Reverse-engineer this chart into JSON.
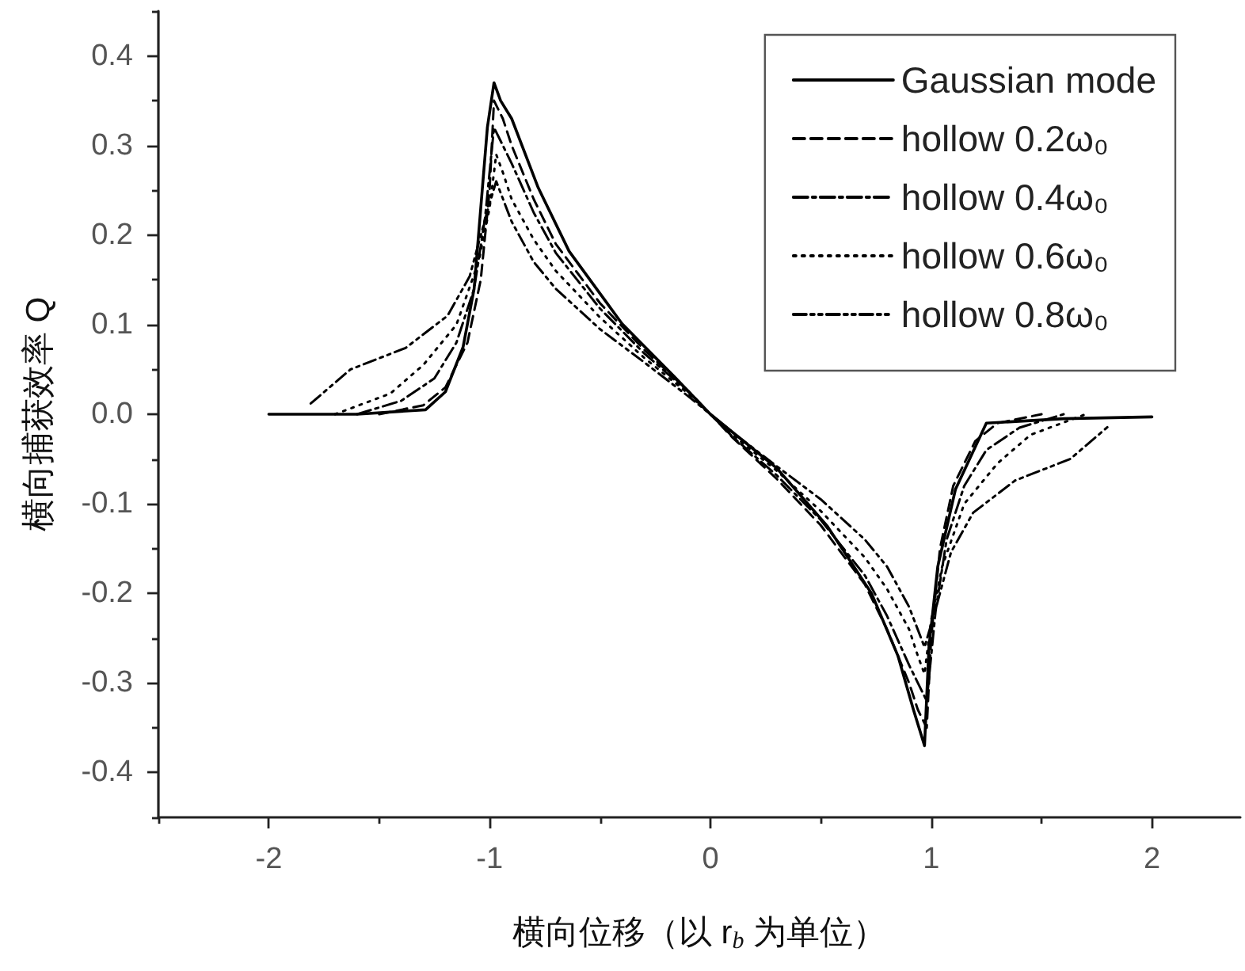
{
  "chart_data": {
    "type": "line",
    "xlabel": "横向位移（以 r$_{b}$ 为单位）",
    "ylabel": "横向捕获效率 Q",
    "xlim": [
      -2.5,
      2.4
    ],
    "xticks": [
      {
        "value": -2.5,
        "label": null
      },
      -2,
      {
        "value": -1.5,
        "label": null
      },
      -1,
      {
        "value": -0.5,
        "label": null
      },
      0,
      {
        "value": 0.5,
        "label": null
      },
      1,
      {
        "value": 1.5,
        "label": null
      },
      2
    ],
    "ylim": [
      -0.45,
      0.45
    ],
    "yticks": [
      {
        "value": -0.45,
        "label": null
      },
      -0.4,
      {
        "value": -0.35,
        "label": null
      },
      -0.3,
      {
        "value": -0.25,
        "label": null
      },
      -0.2,
      {
        "value": -0.15,
        "label": null
      },
      -0.1,
      {
        "value": -0.05,
        "label": null
      },
      {
        "value": 0,
        "label": "0.0"
      },
      {
        "value": 0.05,
        "label": null
      },
      0.1,
      {
        "value": 0.15,
        "label": null
      },
      0.2,
      {
        "value": 0.25,
        "label": null
      },
      0.3,
      {
        "value": 0.35,
        "label": null
      },
      0.4,
      {
        "value": 0.45,
        "label": null
      }
    ],
    "legend": "top right",
    "series": [
      {
        "name": "Gaussian mode",
        "color": "#000000",
        "line_style": "solid",
        "x": [
          -2,
          -1.6,
          -1.29,
          -1.2,
          -1.12,
          -1.07,
          -1.04,
          -1.01,
          -0.98,
          -0.95,
          -0.9,
          -0.78,
          -0.64,
          -0.4,
          -0.16,
          0,
          0.3,
          0.53,
          0.73,
          0.85,
          0.92,
          0.97,
          0.99,
          1.03,
          1.11,
          1.25,
          1.6,
          2
        ],
        "values": [
          0,
          0,
          0.005,
          0.025,
          0.075,
          0.14,
          0.23,
          0.32,
          0.37,
          0.35,
          0.33,
          0.253,
          0.182,
          0.101,
          0.041,
          0,
          -0.06,
          -0.125,
          -0.2,
          -0.27,
          -0.33,
          -0.37,
          -0.26,
          -0.17,
          -0.084,
          -0.01,
          -0.005,
          -0.003
        ]
      },
      {
        "name": "hollow 0.2ω₀",
        "color": "#000000",
        "line_style": "dashed",
        "x": [
          -1.5,
          -1.3,
          -1.2,
          -1.1,
          -1.04,
          -1.0,
          -0.98,
          -0.94,
          -0.9,
          -0.8,
          -0.7,
          -0.5,
          -0.3,
          -0.1,
          0,
          0.1,
          0.3,
          0.5,
          0.7,
          0.8,
          0.9,
          0.94,
          0.98,
          1.0,
          1.04,
          1.1,
          1.2,
          1.3,
          1.5
        ],
        "values": [
          0,
          0.01,
          0.03,
          0.08,
          0.15,
          0.25,
          0.35,
          0.33,
          0.3,
          0.24,
          0.19,
          0.124,
          0.072,
          0.026,
          0,
          -0.026,
          -0.072,
          -0.124,
          -0.19,
          -0.24,
          -0.3,
          -0.33,
          -0.35,
          -0.25,
          -0.15,
          -0.08,
          -0.03,
          -0.01,
          0
        ]
      },
      {
        "name": "hollow 0.4ω₀",
        "color": "#000000",
        "line_style": "dashdot",
        "x": [
          -1.6,
          -1.4,
          -1.25,
          -1.15,
          -1.07,
          -1.02,
          -0.98,
          -0.94,
          -0.9,
          -0.8,
          -0.7,
          -0.5,
          -0.3,
          -0.1,
          0,
          0.1,
          0.3,
          0.5,
          0.7,
          0.8,
          0.9,
          0.94,
          0.98,
          1.02,
          1.07,
          1.15,
          1.25,
          1.4,
          1.6
        ],
        "values": [
          0,
          0.015,
          0.04,
          0.08,
          0.14,
          0.22,
          0.32,
          0.3,
          0.28,
          0.225,
          0.18,
          0.118,
          0.068,
          0.025,
          0,
          -0.025,
          -0.068,
          -0.118,
          -0.18,
          -0.225,
          -0.28,
          -0.3,
          -0.32,
          -0.22,
          -0.14,
          -0.08,
          -0.04,
          -0.015,
          0
        ]
      },
      {
        "name": "hollow 0.6ω₀",
        "color": "#000000",
        "line_style": "dotted",
        "x": [
          -1.7,
          -1.45,
          -1.3,
          -1.15,
          -1.05,
          -1.0,
          -0.97,
          -0.94,
          -0.9,
          -0.8,
          -0.7,
          -0.5,
          -0.3,
          -0.1,
          0,
          0.1,
          0.3,
          0.5,
          0.7,
          0.8,
          0.9,
          0.94,
          0.97,
          1.0,
          1.05,
          1.15,
          1.3,
          1.45,
          1.7
        ],
        "values": [
          0,
          0.023,
          0.055,
          0.1,
          0.17,
          0.23,
          0.29,
          0.27,
          0.24,
          0.195,
          0.16,
          0.108,
          0.063,
          0.023,
          0,
          -0.023,
          -0.063,
          -0.108,
          -0.16,
          -0.195,
          -0.24,
          -0.27,
          -0.29,
          -0.23,
          -0.17,
          -0.1,
          -0.055,
          -0.023,
          0
        ]
      },
      {
        "name": "hollow 0.8ω₀",
        "color": "#000000",
        "line_style": "dashdotdot",
        "x": [
          -1.81,
          -1.63,
          -1.38,
          -1.19,
          -1.09,
          -1.02,
          -0.97,
          -0.9,
          -0.8,
          -0.7,
          -0.5,
          -0.3,
          -0.1,
          0,
          0.1,
          0.3,
          0.5,
          0.7,
          0.8,
          0.9,
          0.97,
          1.02,
          1.09,
          1.19,
          1.38,
          1.63,
          1.81
        ],
        "values": [
          0.012,
          0.05,
          0.074,
          0.11,
          0.154,
          0.218,
          0.26,
          0.215,
          0.17,
          0.14,
          0.095,
          0.058,
          0.02,
          0,
          -0.02,
          -0.058,
          -0.095,
          -0.14,
          -0.17,
          -0.215,
          -0.26,
          -0.218,
          -0.154,
          -0.11,
          -0.074,
          -0.05,
          -0.012
        ]
      }
    ]
  }
}
